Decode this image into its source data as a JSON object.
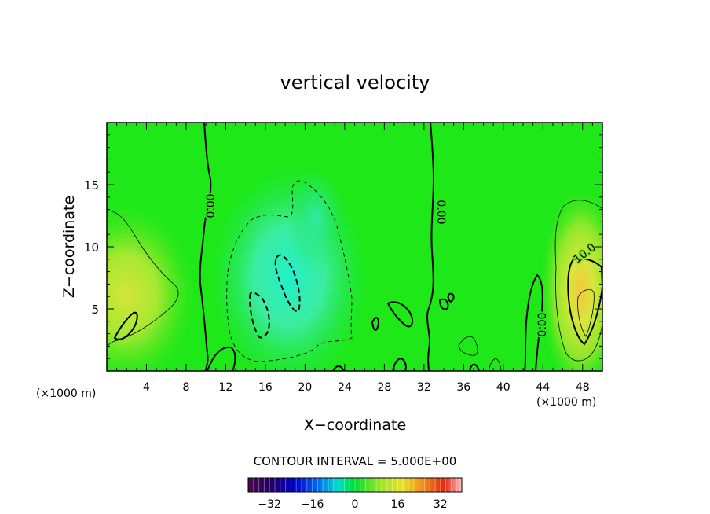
{
  "chart_data": {
    "type": "contour",
    "title": "vertical velocity",
    "xlabel": "X−coordinate",
    "ylabel": "Z−coordinate",
    "x_unit": "(×1000 m)",
    "x_unit_right": "(×1000 m)",
    "xlim": [
      0,
      50
    ],
    "ylim": [
      0,
      20
    ],
    "x_ticks": [
      4,
      8,
      12,
      16,
      20,
      24,
      28,
      32,
      36,
      40,
      44,
      48
    ],
    "x_tick_labels": [
      "4",
      "8",
      "12",
      "16",
      "20",
      "24",
      "28",
      "32",
      "36",
      "40",
      "44",
      "48"
    ],
    "y_ticks": [
      5,
      10,
      15
    ],
    "y_tick_labels": [
      "5",
      "10",
      "15"
    ],
    "contour_labels": [
      {
        "text": "0.00",
        "x": 10,
        "z": 12.5
      },
      {
        "text": "0.00",
        "x": 33.3,
        "z": 12.5
      },
      {
        "text": "0.00",
        "x": 44.2,
        "z": 3.8
      },
      {
        "text": "10.0",
        "x": 48.5,
        "z": 9.6
      }
    ],
    "zero_contours": [
      [
        [
          9.8,
          20
        ],
        [
          10.3,
          16
        ],
        [
          10.2,
          12
        ],
        [
          9.6,
          8
        ],
        [
          9.8,
          4
        ],
        [
          10,
          0
        ]
      ],
      [
        [
          32.6,
          20
        ],
        [
          32.9,
          16
        ],
        [
          32.8,
          12
        ],
        [
          32.9,
          8
        ],
        [
          32.5,
          4
        ],
        [
          32.8,
          0
        ]
      ],
      [
        [
          43.2,
          0
        ],
        [
          43.6,
          3
        ],
        [
          43.4,
          6
        ],
        [
          43.8,
          7.6
        ],
        [
          43.7,
          5
        ],
        [
          43.3,
          2
        ],
        [
          42.8,
          0
        ]
      ]
    ],
    "features": [
      {
        "name": "Updraft (right)",
        "x": 47.8,
        "z": 5.5,
        "peak": 14
      },
      {
        "name": "Updraft (left)",
        "x": 2.5,
        "z": 3.8,
        "peak": 10
      },
      {
        "name": "Downdraft (center)",
        "x": 18,
        "z": 6.5,
        "peak": -10
      }
    ],
    "contour_interval_label": "CONTOUR INTERVAL = 5.000E+00",
    "colorbar": {
      "min": -40,
      "max": 40,
      "ticks": [
        -32,
        -16,
        0,
        16,
        32
      ],
      "tick_labels": [
        "−32",
        "−16",
        "0",
        "16",
        "32"
      ]
    },
    "grid": false
  }
}
